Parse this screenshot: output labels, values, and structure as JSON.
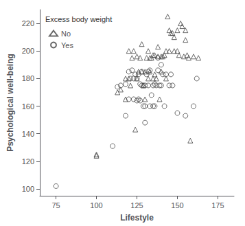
{
  "chart_data": {
    "type": "scatter",
    "xlabel": "Lifestyle",
    "ylabel": "Psychological well-being",
    "legend_title": "Excess body weight",
    "xlim": [
      65,
      185
    ],
    "ylim": [
      95,
      230
    ],
    "xticks": [
      75,
      100,
      125,
      150,
      175
    ],
    "yticks": [
      100,
      120,
      140,
      160,
      180,
      200,
      220
    ],
    "grid": false,
    "legend": "upper left",
    "series": [
      {
        "name": "No",
        "marker": "triangle",
        "color": "#444444",
        "x": [
          100,
          100,
          113,
          115,
          118,
          118,
          120,
          120,
          121,
          122,
          123,
          124,
          125,
          125,
          126,
          127,
          128,
          128,
          129,
          130,
          130,
          131,
          132,
          132,
          133,
          133,
          134,
          135,
          135,
          136,
          136,
          137,
          138,
          138,
          139,
          140,
          140,
          141,
          142,
          143,
          143,
          144,
          145,
          145,
          146,
          147,
          148,
          148,
          150,
          150,
          151,
          152,
          153,
          154,
          155,
          155,
          156,
          157,
          158,
          160,
          163
        ],
        "values": [
          124,
          125,
          170,
          172,
          165,
          180,
          180,
          200,
          175,
          195,
          200,
          143,
          180,
          196,
          185,
          195,
          185,
          205,
          175,
          165,
          185,
          195,
          180,
          200,
          185,
          195,
          195,
          180,
          197,
          183,
          197,
          180,
          196,
          203,
          165,
          185,
          196,
          196,
          197,
          180,
          200,
          225,
          200,
          215,
          213,
          213,
          200,
          210,
          200,
          215,
          197,
          220,
          218,
          196,
          208,
          215,
          197,
          195,
          135,
          196,
          195
        ]
      },
      {
        "name": "Yes",
        "marker": "circle",
        "color": "#444444",
        "x": [
          75,
          110,
          113,
          115,
          118,
          118,
          120,
          120,
          121,
          122,
          123,
          123,
          124,
          125,
          125,
          126,
          126,
          127,
          127,
          128,
          128,
          129,
          129,
          130,
          130,
          130,
          131,
          132,
          132,
          133,
          133,
          134,
          135,
          135,
          136,
          136,
          137,
          138,
          138,
          139,
          140,
          140,
          141,
          142,
          143,
          145,
          146,
          147,
          150,
          155,
          160,
          162
        ],
        "values": [
          102,
          131,
          174,
          175,
          153,
          176,
          165,
          185,
          180,
          186,
          165,
          180,
          183,
          164,
          180,
          165,
          183,
          164,
          176,
          175,
          185,
          160,
          175,
          148,
          160,
          175,
          183,
          175,
          185,
          160,
          186,
          168,
          160,
          175,
          160,
          176,
          175,
          186,
          195,
          175,
          175,
          190,
          183,
          160,
          183,
          175,
          183,
          175,
          155,
          153,
          160,
          180
        ]
      }
    ]
  }
}
